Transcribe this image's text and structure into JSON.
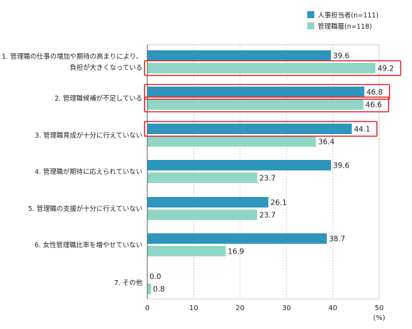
{
  "chart_data": {
    "type": "bar",
    "orientation": "horizontal",
    "categories": [
      [
        "1. 管理職の仕事の増加や期待の高まりにより、",
        "負担が大きくなっている"
      ],
      [
        "2. 管理職候補が不足している"
      ],
      [
        "3. 管理職育成が十分に行えていない"
      ],
      [
        "4. 管理職が期待に応えられていない"
      ],
      [
        "5. 管理職の支援が十分に行えていない"
      ],
      [
        "6. 女性管理職比率を増やせていない"
      ],
      [
        "7. その他"
      ]
    ],
    "series": [
      {
        "name": "人事担当者(n=111)",
        "color": "#2e96bd",
        "values": [
          39.6,
          46.8,
          44.1,
          39.6,
          26.1,
          38.7,
          0.0
        ]
      },
      {
        "name": "管理職層(n=118)",
        "color": "#8fd6c6",
        "values": [
          49.2,
          46.6,
          36.4,
          23.7,
          23.7,
          16.9,
          0.8
        ]
      }
    ],
    "value_labels": [
      [
        "39.6",
        "46.8",
        "44.1",
        "39.6",
        "26.1",
        "38.7",
        "0.0"
      ],
      [
        "49.2",
        "46.6",
        "36.4",
        "23.7",
        "23.7",
        "16.9",
        "0.8"
      ]
    ],
    "highlighted": [
      {
        "series": 1,
        "index": 0
      },
      {
        "series": 0,
        "index": 1
      },
      {
        "series": 1,
        "index": 1
      },
      {
        "series": 0,
        "index": 2
      }
    ],
    "highlight_color": "#e0242b",
    "xlim": [
      0,
      50
    ],
    "xticks": [
      "0",
      "10",
      "20",
      "30",
      "40",
      "50"
    ],
    "xunit": "(%)",
    "grid": "vertical dotted",
    "legend_position": "top-right"
  }
}
